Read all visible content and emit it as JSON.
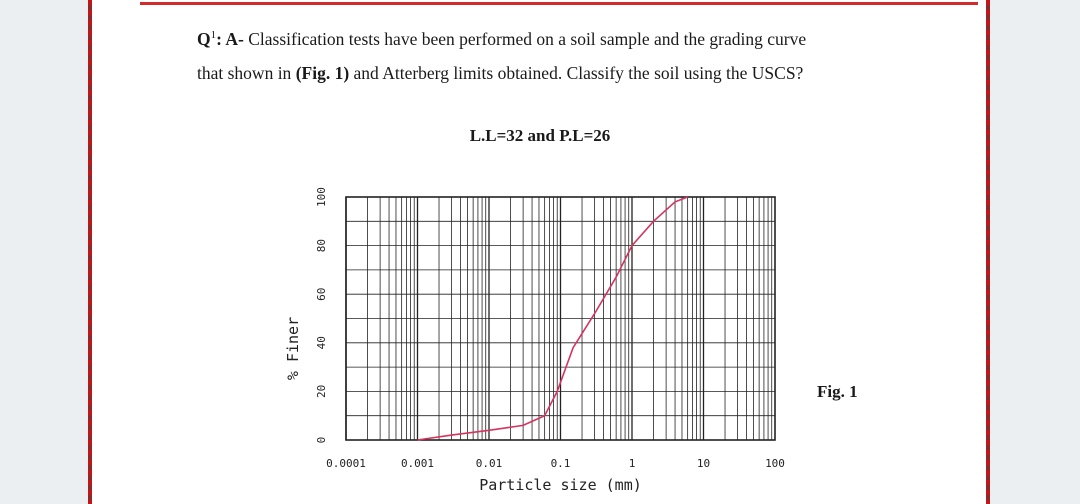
{
  "question": {
    "prefix": "Q",
    "sup": "1",
    "part": ": A-",
    "line1_rest": " Classification tests have been performed on a soil sample and the grading curve",
    "line2_a": "that shown in ",
    "fig_ref": "(Fig. 1)",
    "line2_b": " and Atterberg limits obtained. Classify the soil using the USCS?"
  },
  "limits_label": "L.L=32 and P.L=26",
  "fig_label": "Fig. 1",
  "chart_data": {
    "type": "line",
    "title": "",
    "xlabel": "Particle size (mm)",
    "ylabel": "% Finer",
    "x_scale": "log",
    "xlim": [
      0.0001,
      100
    ],
    "ylim": [
      0,
      100
    ],
    "x_ticks": [
      0.0001,
      0.001,
      0.01,
      0.1,
      1,
      10,
      100
    ],
    "x_tick_labels": [
      "0.0001",
      "0.001",
      "0.01",
      "0.1",
      "1",
      "10",
      "100"
    ],
    "y_ticks": [
      0,
      20,
      40,
      60,
      80,
      100
    ],
    "y_tick_labels": [
      "0",
      "20",
      "40",
      "60",
      "80",
      "100"
    ],
    "grid": true,
    "series": [
      {
        "color": "#d6335e",
        "x": [
          0.001,
          0.003,
          0.01,
          0.03,
          0.06,
          0.09,
          0.15,
          0.3,
          0.6,
          1.0,
          2.0,
          4.0,
          6.0
        ],
        "y": [
          0,
          2,
          4,
          6,
          10,
          20,
          38,
          52,
          67,
          80,
          90,
          98,
          100
        ]
      }
    ]
  }
}
